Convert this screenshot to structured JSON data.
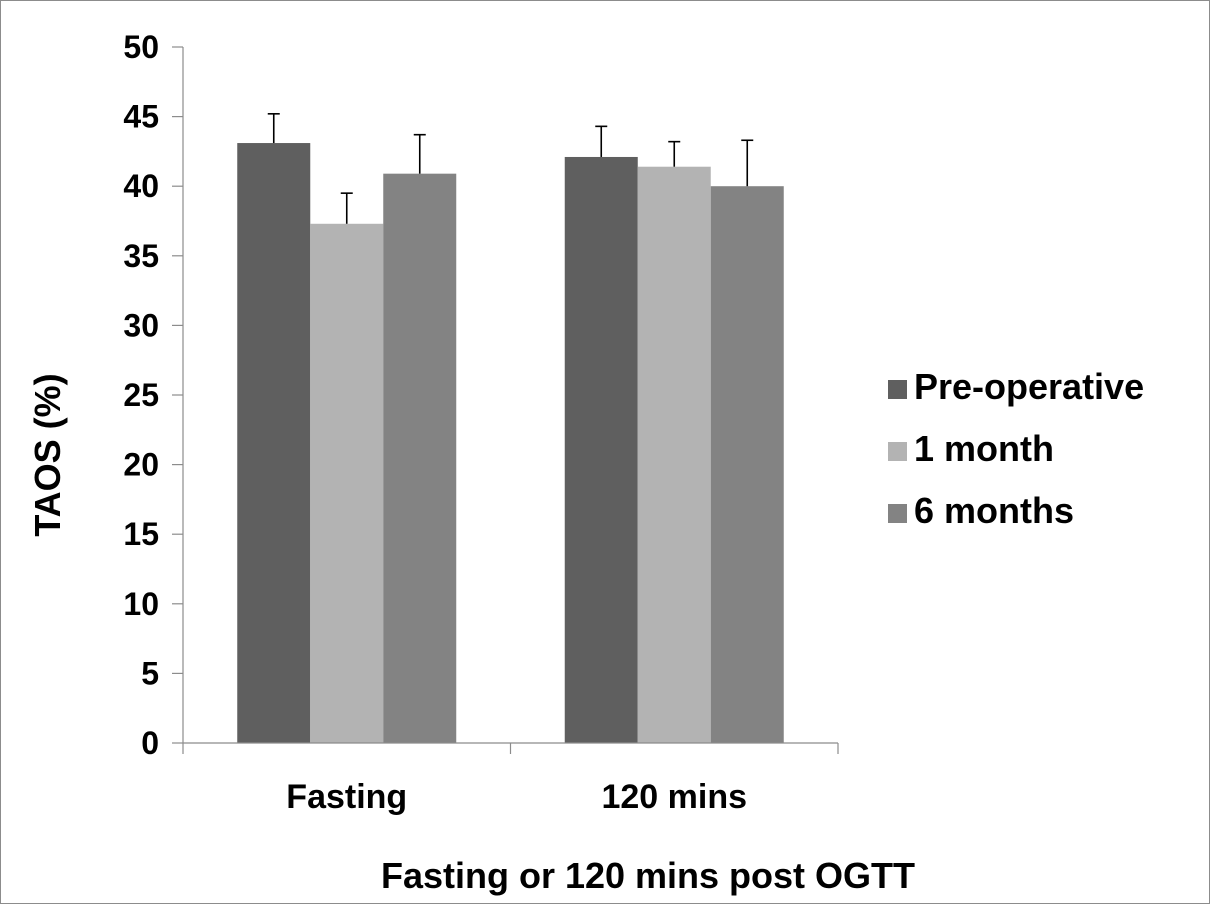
{
  "chart_data": {
    "type": "bar",
    "title": "",
    "xlabel": "Fasting or 120 mins post OGTT",
    "ylabel": "TAOS (%)",
    "categories": [
      "Fasting",
      "120 mins"
    ],
    "ylim": [
      0,
      50
    ],
    "yticks": [
      0,
      5,
      10,
      15,
      20,
      25,
      30,
      35,
      40,
      45,
      50
    ],
    "grid": false,
    "legend": "right",
    "series": [
      {
        "name": "Pre-operative",
        "values": [
          43.1,
          42.1
        ],
        "errors": [
          2.1,
          2.2
        ],
        "color": "#5f5f5f"
      },
      {
        "name": "1 month",
        "values": [
          37.3,
          41.4
        ],
        "errors": [
          2.2,
          1.8
        ],
        "color": "#b3b3b3"
      },
      {
        "name": "6 months",
        "values": [
          40.9,
          40.0
        ],
        "errors": [
          2.8,
          3.3
        ],
        "color": "#838383"
      }
    ]
  }
}
